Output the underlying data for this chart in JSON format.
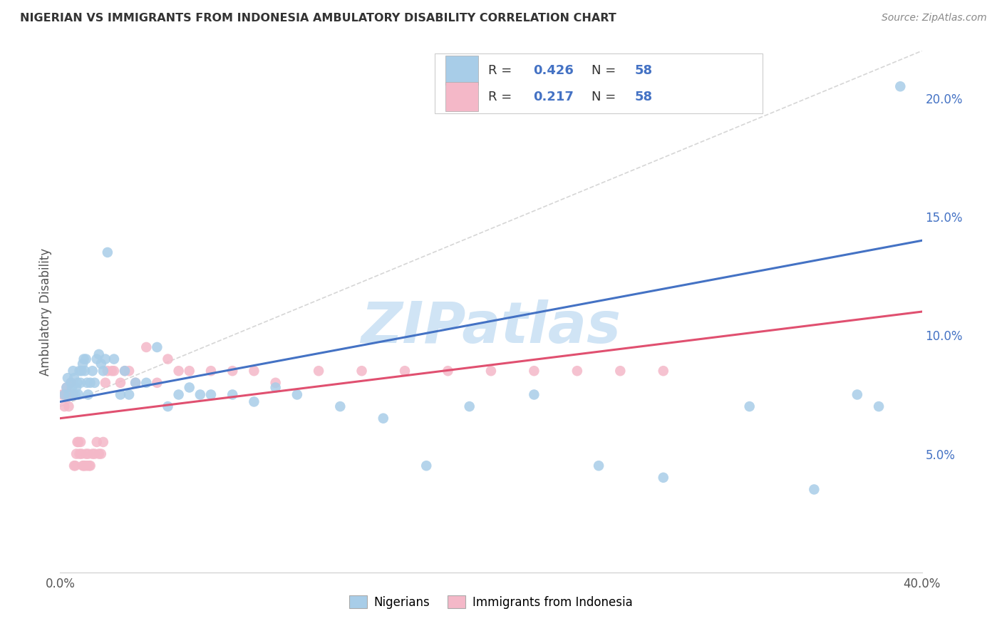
{
  "title": "NIGERIAN VS IMMIGRANTS FROM INDONESIA AMBULATORY DISABILITY CORRELATION CHART",
  "source": "Source: ZipAtlas.com",
  "ylabel": "Ambulatory Disability",
  "right_yticks": [
    "5.0%",
    "10.0%",
    "15.0%",
    "20.0%"
  ],
  "right_ytick_vals": [
    5.0,
    10.0,
    15.0,
    20.0
  ],
  "xmin": 0.0,
  "xmax": 40.0,
  "ymin": 0.0,
  "ymax": 22.0,
  "legend_blue_R": "0.426",
  "legend_blue_N": "58",
  "legend_pink_R": "0.217",
  "legend_pink_N": "58",
  "color_blue": "#a8cde8",
  "color_pink": "#f4b8c8",
  "color_blue_line": "#4472C4",
  "color_pink_line": "#e05070",
  "color_text_blue": "#4472C4",
  "watermark_color": "#d0e4f5",
  "blue_x": [
    0.2,
    0.3,
    0.35,
    0.4,
    0.5,
    0.55,
    0.6,
    0.65,
    0.7,
    0.75,
    0.8,
    0.85,
    0.9,
    0.95,
    1.0,
    1.05,
    1.1,
    1.15,
    1.2,
    1.25,
    1.3,
    1.4,
    1.5,
    1.6,
    1.7,
    1.8,
    1.9,
    2.0,
    2.1,
    2.2,
    2.5,
    2.8,
    3.0,
    3.2,
    3.5,
    4.0,
    4.5,
    5.0,
    5.5,
    6.0,
    6.5,
    7.0,
    8.0,
    9.0,
    10.0,
    11.0,
    13.0,
    15.0,
    17.0,
    19.0,
    22.0,
    25.0,
    28.0,
    32.0,
    35.0,
    37.0,
    38.0,
    39.0
  ],
  "blue_y": [
    7.5,
    7.8,
    8.2,
    7.5,
    8.0,
    7.8,
    8.5,
    8.2,
    7.5,
    7.8,
    8.0,
    7.5,
    8.5,
    8.0,
    8.5,
    8.8,
    9.0,
    8.5,
    9.0,
    8.0,
    7.5,
    8.0,
    8.5,
    8.0,
    9.0,
    9.2,
    8.8,
    8.5,
    9.0,
    13.5,
    9.0,
    7.5,
    8.5,
    7.5,
    8.0,
    8.0,
    9.5,
    7.0,
    7.5,
    7.8,
    7.5,
    7.5,
    7.5,
    7.2,
    7.8,
    7.5,
    7.0,
    6.5,
    4.5,
    7.0,
    7.5,
    4.5,
    4.0,
    7.0,
    3.5,
    7.5,
    7.0,
    20.5
  ],
  "pink_x": [
    0.1,
    0.2,
    0.25,
    0.3,
    0.35,
    0.4,
    0.45,
    0.5,
    0.55,
    0.6,
    0.65,
    0.7,
    0.75,
    0.8,
    0.85,
    0.9,
    0.95,
    1.0,
    1.05,
    1.1,
    1.15,
    1.2,
    1.25,
    1.3,
    1.35,
    1.4,
    1.5,
    1.6,
    1.7,
    1.8,
    1.9,
    2.0,
    2.1,
    2.2,
    2.4,
    2.5,
    2.8,
    3.0,
    3.2,
    3.5,
    4.0,
    4.5,
    5.0,
    5.5,
    6.0,
    7.0,
    8.0,
    9.0,
    10.0,
    12.0,
    14.0,
    16.0,
    18.0,
    20.0,
    22.0,
    24.0,
    26.0,
    28.0
  ],
  "pink_y": [
    7.5,
    7.0,
    7.5,
    7.8,
    7.5,
    7.0,
    7.5,
    8.0,
    7.5,
    7.5,
    4.5,
    4.5,
    5.0,
    5.5,
    5.5,
    5.0,
    5.5,
    5.0,
    4.5,
    4.5,
    4.5,
    5.0,
    4.5,
    5.0,
    4.5,
    4.5,
    5.0,
    5.0,
    5.5,
    5.0,
    5.0,
    5.5,
    8.0,
    8.5,
    8.5,
    8.5,
    8.0,
    8.5,
    8.5,
    8.0,
    9.5,
    8.0,
    9.0,
    8.5,
    8.5,
    8.5,
    8.5,
    8.5,
    8.0,
    8.5,
    8.5,
    8.5,
    8.5,
    8.5,
    8.5,
    8.5,
    8.5,
    8.5
  ],
  "blue_trend_x": [
    0.0,
    40.0
  ],
  "blue_trend_y": [
    7.2,
    14.0
  ],
  "pink_trend_x": [
    0.0,
    40.0
  ],
  "pink_trend_y": [
    6.5,
    11.0
  ],
  "dashed_trend_x": [
    0.0,
    40.0
  ],
  "dashed_trend_y": [
    7.0,
    22.0
  ],
  "background_color": "#ffffff",
  "grid_color": "#dddddd"
}
